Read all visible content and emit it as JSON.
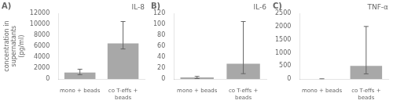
{
  "chart_data": [
    {
      "type": "bar",
      "title": "A)",
      "annotations": [
        "IL-8"
      ],
      "ylabel": "concentration in\nsupernatants\n(pg/ml)",
      "categories": [
        "mono + beads",
        "co T-effs +\nbeads"
      ],
      "values": [
        1200,
        6500
      ],
      "error_low": [
        800,
        5500
      ],
      "error_high": [
        1800,
        10500
      ],
      "color": "#a8a8a8",
      "ylim": [
        0,
        12000
      ],
      "yticks": [
        0,
        2000,
        4000,
        6000,
        8000,
        10000,
        12000
      ],
      "grid": false
    },
    {
      "type": "bar",
      "title": "B)",
      "annotations": [
        "IL-6"
      ],
      "categories": [
        "mono + beads",
        "co T-effs +\nbeads"
      ],
      "values": [
        3,
        28
      ],
      "error_low": [
        1,
        10
      ],
      "error_high": [
        5,
        105
      ],
      "color": "#a8a8a8",
      "ylim": [
        0,
        120
      ],
      "yticks": [
        0,
        20,
        40,
        60,
        80,
        100,
        120
      ],
      "grid": false
    },
    {
      "type": "bar",
      "title": "C)",
      "annotations": [
        "TNF-α"
      ],
      "categories": [
        "mono + beads",
        "co T-effs +\nbeads"
      ],
      "values": [
        0,
        500
      ],
      "error_low": [
        0,
        200
      ],
      "error_high": [
        10,
        2000
      ],
      "color": "#a8a8a8",
      "ylim": [
        0,
        2500
      ],
      "yticks": [
        0,
        500,
        1000,
        1500,
        2000,
        2500
      ],
      "grid": false
    }
  ]
}
